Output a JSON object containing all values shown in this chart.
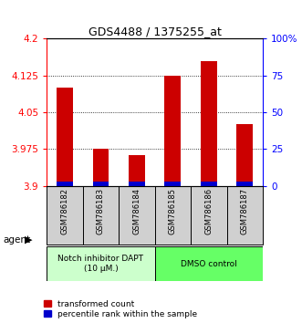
{
  "title": "GDS4488 / 1375255_at",
  "samples": [
    "GSM786182",
    "GSM786183",
    "GSM786184",
    "GSM786185",
    "GSM786186",
    "GSM786187"
  ],
  "red_values": [
    4.1,
    3.975,
    3.962,
    4.125,
    4.155,
    4.025
  ],
  "ylim": [
    3.9,
    4.2
  ],
  "yticks": [
    3.9,
    3.975,
    4.05,
    4.125,
    4.2
  ],
  "ytick_labels": [
    "3.9",
    "3.975",
    "4.05",
    "4.125",
    "4.2"
  ],
  "right_yticks": [
    0,
    25,
    50,
    75,
    100
  ],
  "right_ytick_labels": [
    "0",
    "25",
    "50",
    "75",
    "100%"
  ],
  "gridlines": [
    3.975,
    4.05,
    4.125
  ],
  "group1_label": "Notch inhibitor DAPT\n(10 μM.)",
  "group2_label": "DMSO control",
  "group1_color": "#ccffcc",
  "group2_color": "#66ff66",
  "sample_box_color": "#d0d0d0",
  "bar_base": 3.9,
  "red_color": "#cc0000",
  "blue_color": "#0000cc",
  "legend_red": "transformed count",
  "legend_blue": "percentile rank within the sample",
  "blue_bar_height": 0.008,
  "bar_width": 0.45
}
